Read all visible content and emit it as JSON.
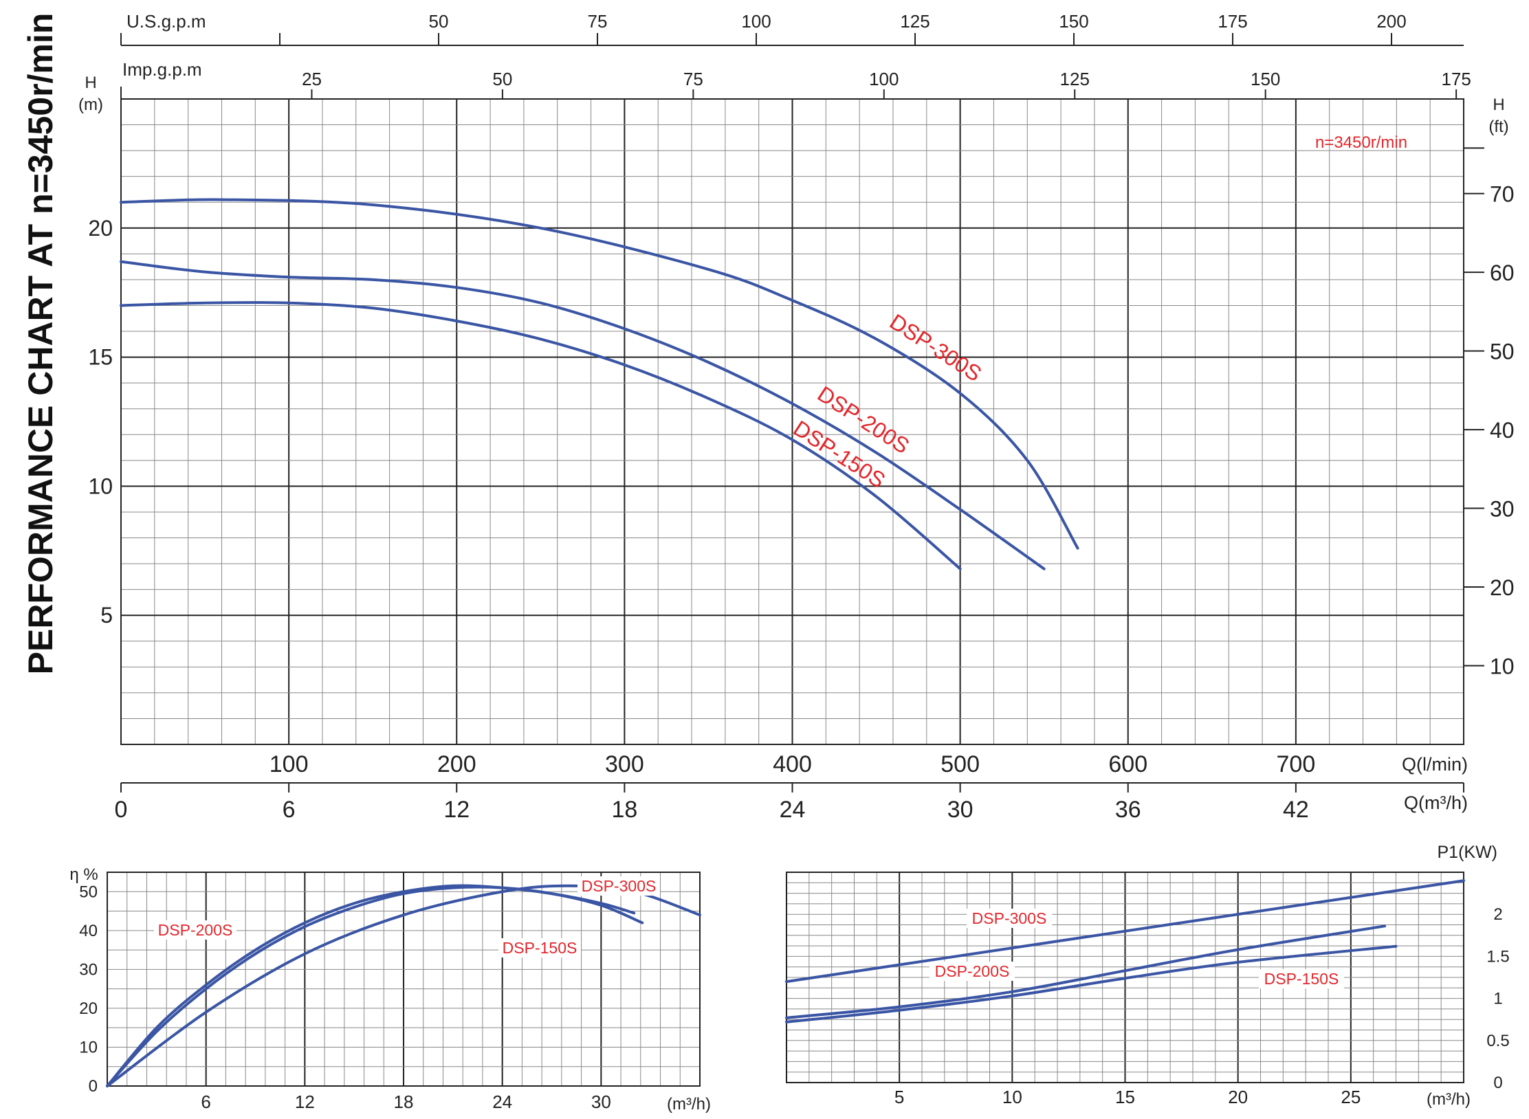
{
  "page": {
    "vertical_title": "PERFORMANCE CHART AT n=3450r/min",
    "speed_note": "n=3450r/min"
  },
  "colors": {
    "curve": "#3a55a4",
    "label": "#e3262b",
    "grid_minor": "#888888",
    "grid_major": "#222222"
  },
  "chart_data": [
    {
      "type": "line",
      "title": "",
      "x_unit": "Q(l/min)",
      "x_secondary_unit": "Q(m3/h)",
      "y_unit": "H (m)",
      "y_secondary_unit": "H (ft)",
      "top_axis_1_label": "U.S.g.p.m",
      "top_axis_2_label": "Imp.g.p.m",
      "xlim": [
        0,
        800
      ],
      "ylim": [
        0,
        25
      ],
      "x_ticks_lpm": [
        "100",
        "200",
        "300",
        "400",
        "500",
        "600",
        "700"
      ],
      "x_ticks_m3h": [
        "0",
        "6",
        "12",
        "18",
        "24",
        "30",
        "36",
        "42"
      ],
      "y_ticks_m": [
        "5",
        "10",
        "15",
        "20"
      ],
      "y_ticks_ft": [
        "10",
        "20",
        "30",
        "40",
        "50",
        "60",
        "70"
      ],
      "us_gpm_ticks": [
        "50",
        "75",
        "100",
        "125",
        "150",
        "175",
        "200"
      ],
      "imp_gpm_ticks": [
        "25",
        "50",
        "75",
        "100",
        "125",
        "150",
        "175"
      ],
      "grid": true,
      "series": [
        {
          "name": "DSP-300S",
          "x": [
            0,
            60,
            150,
            250,
            350,
            400,
            450,
            500,
            540,
            570
          ],
          "y": [
            21,
            21.1,
            20.9,
            20,
            18.4,
            17.2,
            15.7,
            13.6,
            11.0,
            7.6
          ]
        },
        {
          "name": "DSP-200S",
          "x": [
            0,
            50,
            100,
            150,
            200,
            250,
            300,
            350,
            400,
            450,
            500,
            550
          ],
          "y": [
            18.7,
            18.3,
            18.1,
            18.0,
            17.7,
            17.1,
            16.1,
            14.8,
            13.2,
            11.3,
            9.1,
            6.8
          ]
        },
        {
          "name": "DSP-150S",
          "x": [
            0,
            50,
            100,
            150,
            200,
            250,
            300,
            350,
            400,
            450,
            500
          ],
          "y": [
            17.0,
            17.1,
            17.1,
            16.9,
            16.4,
            15.7,
            14.7,
            13.4,
            11.8,
            9.6,
            6.8
          ]
        }
      ]
    },
    {
      "type": "line",
      "title": "",
      "x_unit": "(m3/h)",
      "y_unit": "η %",
      "xlim": [
        0,
        36
      ],
      "ylim": [
        0,
        55
      ],
      "x_ticks": [
        "6",
        "12",
        "18",
        "24",
        "30"
      ],
      "y_ticks": [
        "0",
        "10",
        "20",
        "30",
        "40",
        "50"
      ],
      "grid": true,
      "series": [
        {
          "name": "DSP-200S",
          "x": [
            0,
            3,
            6,
            9,
            12,
            15,
            18,
            21,
            24,
            27,
            30,
            32
          ],
          "y": [
            0,
            15,
            26,
            35,
            42,
            47,
            50,
            51.5,
            51,
            49.5,
            47,
            44.5
          ]
        },
        {
          "name": "DSP-150S",
          "x": [
            0,
            3,
            6,
            9,
            12,
            15,
            18,
            21,
            24,
            27,
            30,
            32.5
          ],
          "y": [
            0,
            14,
            25,
            34,
            41,
            46,
            49.5,
            51,
            51,
            49.5,
            46.5,
            42
          ]
        },
        {
          "name": "DSP-300S",
          "x": [
            0,
            6,
            12,
            18,
            24,
            28,
            32,
            36
          ],
          "y": [
            0,
            19,
            34,
            44,
            50,
            51.5,
            50,
            44
          ]
        }
      ]
    },
    {
      "type": "line",
      "title": "",
      "x_unit": "(m3/h)",
      "y_unit": "P1(KW)",
      "xlim": [
        0,
        30
      ],
      "ylim": [
        0,
        2.5
      ],
      "x_ticks": [
        "5",
        "10",
        "15",
        "20",
        "25"
      ],
      "y_ticks": [
        "0",
        "0.5",
        "1",
        "1.5",
        "2"
      ],
      "grid": true,
      "series": [
        {
          "name": "DSP-300S",
          "x": [
            0,
            30
          ],
          "y": [
            1.2,
            2.4
          ]
        },
        {
          "name": "DSP-200S",
          "x": [
            0,
            5,
            10,
            15,
            20,
            26.5
          ],
          "y": [
            0.77,
            0.9,
            1.08,
            1.33,
            1.58,
            1.86
          ]
        },
        {
          "name": "DSP-150S",
          "x": [
            0,
            5,
            10,
            15,
            20,
            27
          ],
          "y": [
            0.72,
            0.86,
            1.03,
            1.24,
            1.43,
            1.62
          ]
        }
      ]
    }
  ]
}
